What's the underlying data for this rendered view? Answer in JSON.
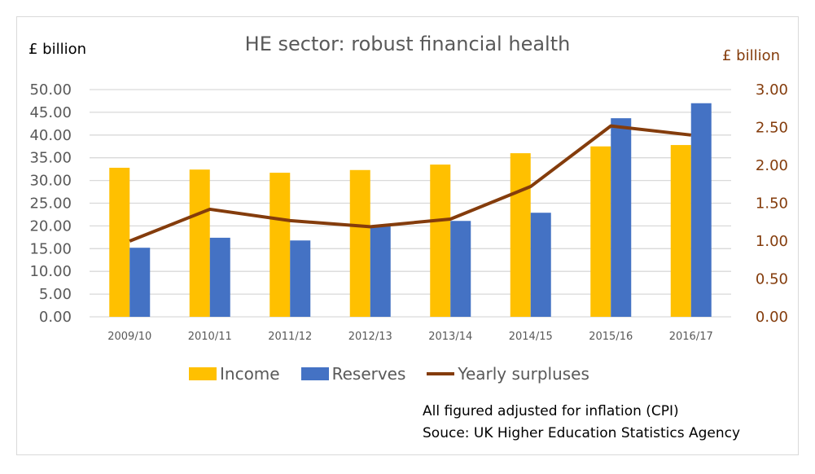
{
  "chart_data": {
    "type": "bar",
    "title": "HE sector: robust financial health",
    "xlabel": "",
    "ylabel": "£ billion",
    "ylabel_right": "£ billion",
    "ylim": [
      0,
      50
    ],
    "ylim_right": [
      0,
      3
    ],
    "yticks": [
      "0.00",
      "5.00",
      "10.00",
      "15.00",
      "20.00",
      "25.00",
      "30.00",
      "35.00",
      "40.00",
      "45.00",
      "50.00"
    ],
    "yticks_right": [
      "0.00",
      "0.50",
      "1.00",
      "1.50",
      "2.00",
      "2.50",
      "3.00"
    ],
    "grid": true,
    "legend_position": "bottom",
    "categories": [
      "2009/10",
      "2010/11",
      "2011/12",
      "2012/13",
      "2013/14",
      "2014/15",
      "2015/16",
      "2016/17"
    ],
    "series": [
      {
        "name": "Income",
        "type": "bar",
        "axis": "left",
        "color": "#ffc000",
        "values": [
          32.8,
          32.4,
          31.7,
          32.3,
          33.5,
          36.0,
          37.5,
          37.8
        ]
      },
      {
        "name": "Reserves",
        "type": "bar",
        "axis": "left",
        "color": "#4472c4",
        "values": [
          15.2,
          17.4,
          16.8,
          19.9,
          21.1,
          22.9,
          43.7,
          47.0
        ]
      },
      {
        "name": "Yearly surpluses",
        "type": "line",
        "axis": "right",
        "color": "#843c0c",
        "values": [
          1.0,
          1.42,
          1.27,
          1.19,
          1.29,
          1.72,
          2.52,
          2.4
        ]
      }
    ],
    "annotations": [
      "All figured adjusted for inflation (CPI)",
      "Souce: UK Higher Education Statistics Agency"
    ]
  },
  "legend": {
    "income": "Income",
    "reserves": "Reserves",
    "surpluses": "Yearly surpluses"
  },
  "notes": {
    "line1": "All figured adjusted for inflation (CPI)",
    "line2": "Souce: UK Higher Education Statistics Agency"
  }
}
